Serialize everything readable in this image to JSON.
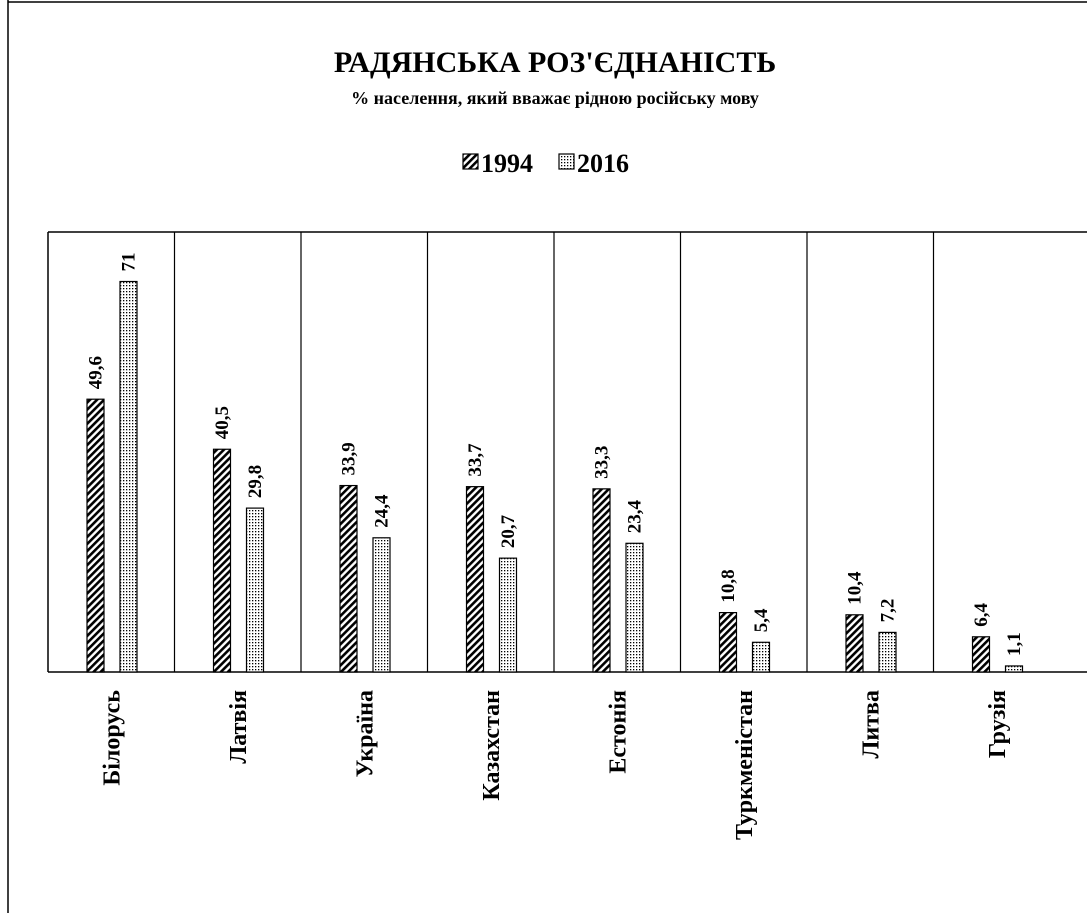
{
  "chart_data": {
    "type": "bar",
    "title": "РАДЯНСЬКА РОЗ'ЄДНАНІСТЬ",
    "subtitle": "% населення, який вважає рідною російську мову",
    "categories": [
      "Білорусь",
      "Латвія",
      "Україна",
      "Казахстан",
      "Естонія",
      "Туркменістан",
      "Литва",
      "Грузія"
    ],
    "series": [
      {
        "name": "1994",
        "color": "#000000",
        "pattern": "hatch",
        "values": [
          49.6,
          40.5,
          33.9,
          33.7,
          33.3,
          10.8,
          10.4,
          6.4
        ],
        "value_labels": [
          "49,6",
          "40,5",
          "33,9",
          "33,7",
          "33,3",
          "10,8",
          "10,4",
          "6,4"
        ]
      },
      {
        "name": "2016",
        "color": "#000000",
        "pattern": "dots",
        "values": [
          71,
          29.8,
          24.4,
          20.7,
          23.4,
          5.4,
          7.2,
          1.1
        ],
        "value_labels": [
          "71",
          "29,8",
          "24,4",
          "20,7",
          "23,4",
          "5,4",
          "7,2",
          "1,1"
        ]
      }
    ],
    "ylim": [
      0,
      80
    ],
    "legend": "top"
  }
}
